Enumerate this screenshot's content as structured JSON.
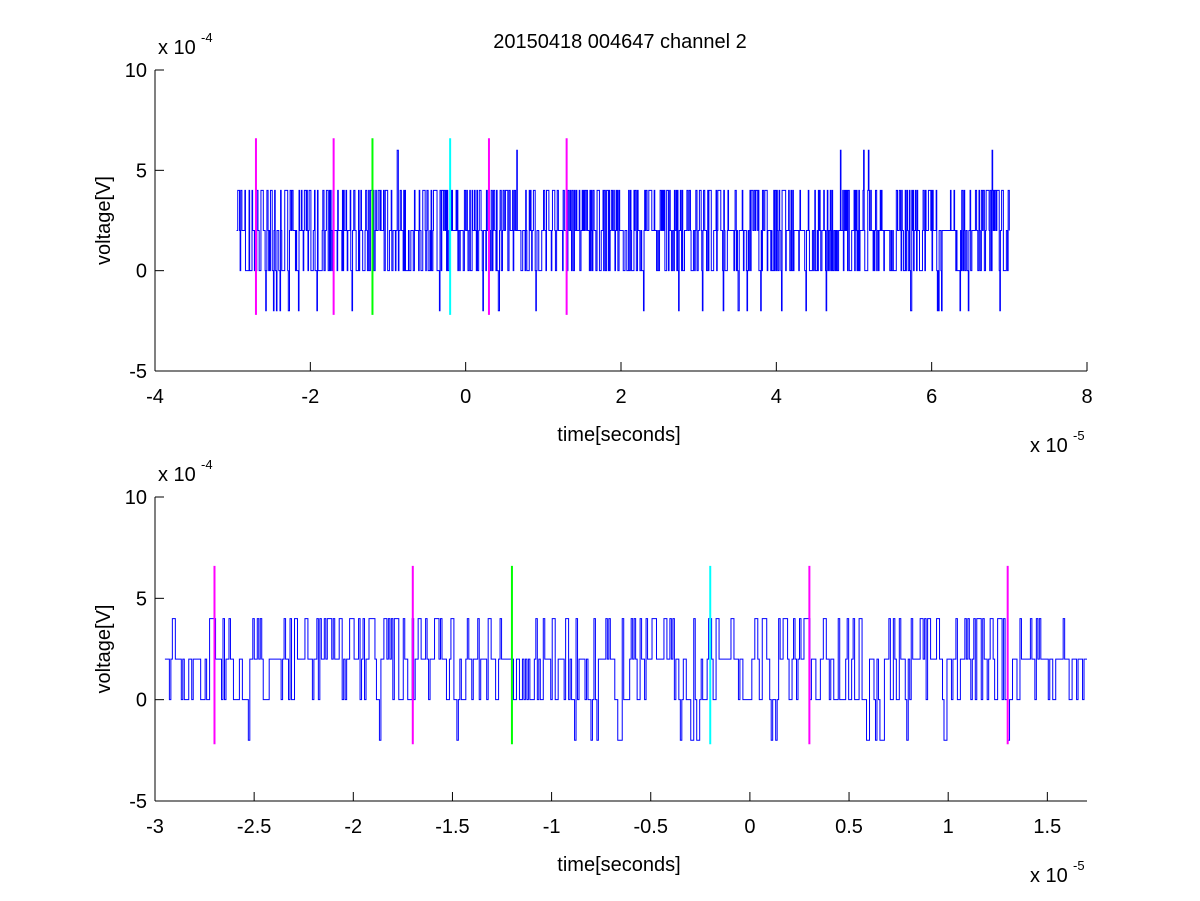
{
  "figure": {
    "title": "20150418 004647 channel 2"
  },
  "chart_data": [
    {
      "type": "line",
      "xlabel": "time[seconds]",
      "ylabel": "voltage[V]",
      "xlim": [
        -4,
        8
      ],
      "ylim": [
        -5,
        10
      ],
      "x_multiplier_label": "x 10",
      "x_multiplier_exp": "-5",
      "y_multiplier_label": "x 10",
      "y_multiplier_exp": "-4",
      "xticks": [
        -4,
        -2,
        0,
        2,
        4,
        6,
        8
      ],
      "xtick_labels": [
        "-4",
        "-2",
        "0",
        "2",
        "4",
        "6",
        "8"
      ],
      "yticks": [
        -5,
        0,
        5,
        10
      ],
      "ytick_labels": [
        "-5",
        "0",
        "5",
        "10"
      ],
      "grid": false,
      "series": [
        {
          "color": "#0000ff",
          "x_range": [
            -2.95,
            7.0
          ],
          "baseline": 2,
          "levels": [
            -2,
            0,
            2,
            4,
            6
          ],
          "note_values": "quantized noise, mostly 0 to 4, occasional spikes to 6"
        }
      ],
      "markers": [
        {
          "x": -2.7,
          "color": "#ff00ff",
          "y_range": [
            -2.2,
            6.6
          ]
        },
        {
          "x": -1.7,
          "color": "#ff00ff",
          "y_range": [
            -2.2,
            6.6
          ]
        },
        {
          "x": -1.2,
          "color": "#00ff00",
          "y_range": [
            -2.2,
            6.6
          ]
        },
        {
          "x": -0.2,
          "color": "#00ffff",
          "y_range": [
            -2.2,
            6.6
          ]
        },
        {
          "x": 0.3,
          "color": "#ff00ff",
          "y_range": [
            -2.2,
            6.6
          ]
        },
        {
          "x": 1.3,
          "color": "#ff00ff",
          "y_range": [
            -2.2,
            6.6
          ]
        }
      ]
    },
    {
      "type": "line",
      "xlabel": "time[seconds]",
      "ylabel": "voltage[V]",
      "xlim": [
        -3.0,
        1.7
      ],
      "ylim": [
        -5,
        10
      ],
      "x_multiplier_label": "x 10",
      "x_multiplier_exp": "-5",
      "y_multiplier_label": "x 10",
      "y_multiplier_exp": "-4",
      "xticks": [
        -3,
        -2.5,
        -2,
        -1.5,
        -1,
        -0.5,
        0,
        0.5,
        1,
        1.5
      ],
      "xtick_labels": [
        "-3",
        "-2.5",
        "-2",
        "-1.5",
        "-1",
        "-0.5",
        "0",
        "0.5",
        "1",
        "1.5"
      ],
      "yticks": [
        -5,
        0,
        5,
        10
      ],
      "ytick_labels": [
        "-5",
        "0",
        "5",
        "10"
      ],
      "grid": false,
      "series": [
        {
          "color": "#0000ff",
          "x_range": [
            -2.95,
            1.7
          ],
          "baseline": 2,
          "levels": [
            -2,
            0,
            2,
            4
          ],
          "note_values": "quantized noise, mostly 0 to 4"
        }
      ],
      "markers": [
        {
          "x": -2.7,
          "color": "#ff00ff",
          "y_range": [
            -2.2,
            6.6
          ]
        },
        {
          "x": -1.7,
          "color": "#ff00ff",
          "y_range": [
            -2.2,
            6.6
          ]
        },
        {
          "x": -1.2,
          "color": "#00ff00",
          "y_range": [
            -2.2,
            6.6
          ]
        },
        {
          "x": -0.2,
          "color": "#00ffff",
          "y_range": [
            -2.2,
            6.6
          ]
        },
        {
          "x": 0.3,
          "color": "#ff00ff",
          "y_range": [
            -2.2,
            6.6
          ]
        },
        {
          "x": 1.3,
          "color": "#ff00ff",
          "y_range": [
            -2.2,
            6.6
          ]
        }
      ]
    }
  ]
}
